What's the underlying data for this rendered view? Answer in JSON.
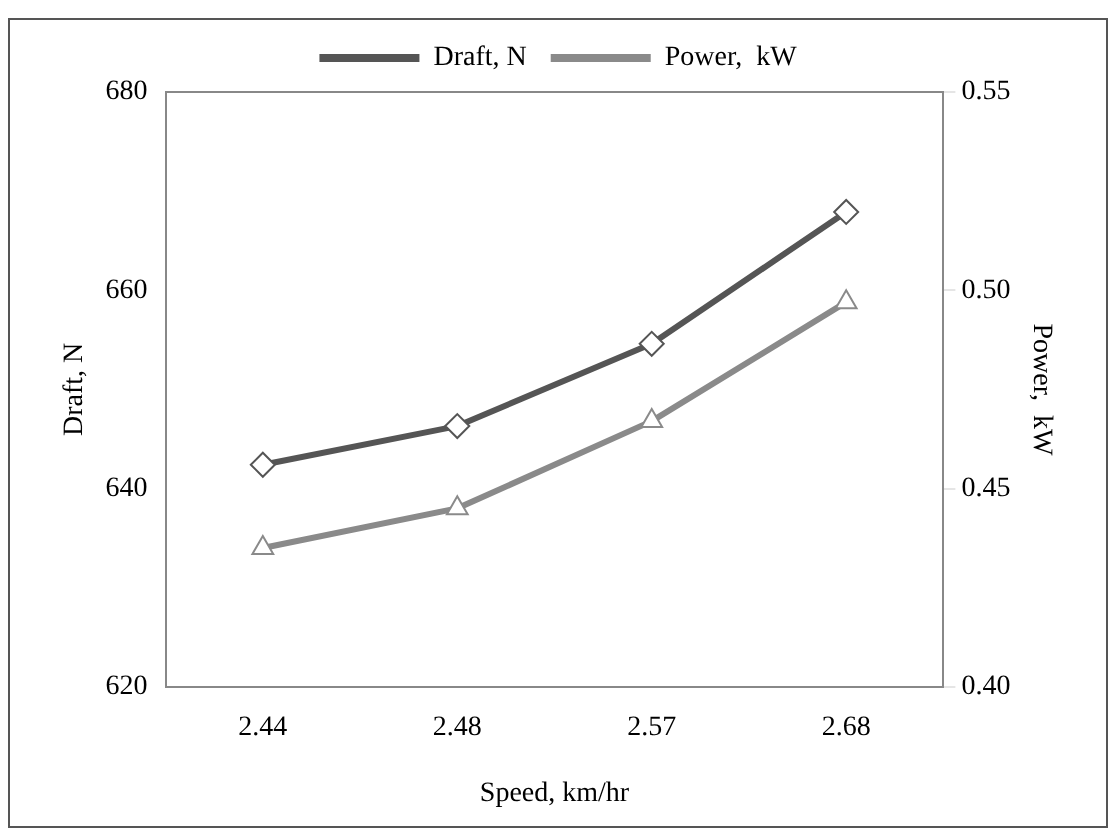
{
  "chart_data": {
    "type": "line",
    "xlabel": "Speed, km/hr",
    "ylabel": "Draft, N",
    "y2label": "Power,  kW",
    "categories": [
      "2.44",
      "2.48",
      "2.57",
      "2.68"
    ],
    "series": [
      {
        "name": "Draft, N",
        "color": "#555555",
        "marker": "diamond",
        "values": [
          642.4,
          646.3,
          654.6,
          667.9
        ]
      },
      {
        "name": "Power,  kW",
        "color": "#8a8a8a",
        "marker": "triangle",
        "axis": "y2",
        "values": [
          0.435,
          0.445,
          0.467,
          0.497
        ]
      }
    ],
    "ylim": [
      620,
      680
    ],
    "yticks": [
      620,
      640,
      660,
      680
    ],
    "y2lim": [
      0.4,
      0.55
    ],
    "y2ticks": [
      {
        "value": 0.4,
        "label": "0.40"
      },
      {
        "value": 0.45,
        "label": "0.45"
      },
      {
        "value": 0.5,
        "label": "0.50"
      },
      {
        "value": 0.55,
        "label": "0.55"
      }
    ],
    "legend": "top",
    "grid": false,
    "line_style": "solid"
  }
}
